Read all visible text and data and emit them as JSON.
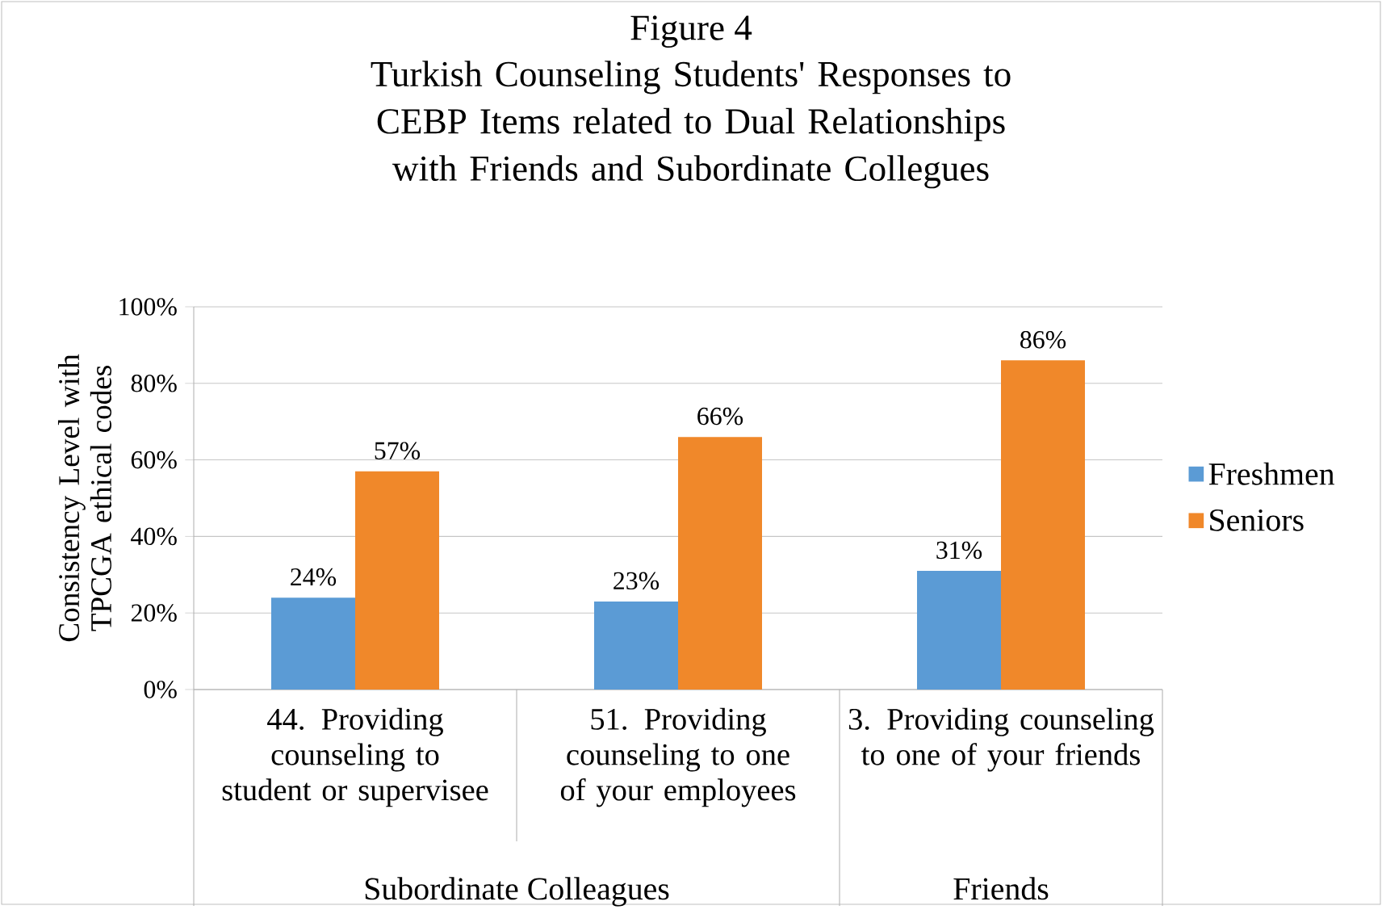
{
  "chart_data": {
    "type": "bar",
    "title": "Figure 4",
    "subtitle": "Turkish Counseling Students' Responses to CEBP Items related to Dual Relationships with Friends and Subordinate Collegues",
    "ylabel": "Consistency Level with TPCGA ethical codes",
    "categories": [
      "44. Providing counseling to student or supervisee",
      "51. Providing counseling to one of your employees",
      "3. Providing counseling to one of your friends"
    ],
    "series": [
      {
        "name": "Freshmen",
        "color": "#5b9bd5",
        "values": [
          24,
          23,
          31
        ],
        "value_labels": [
          "24%",
          "23%",
          "31%"
        ]
      },
      {
        "name": "Seniors",
        "color": "#f0882a",
        "values": [
          57,
          66,
          86
        ],
        "value_labels": [
          "57%",
          "66%",
          "86%"
        ]
      }
    ],
    "ylim": [
      0,
      100
    ],
    "yticks": [
      {
        "value": 0,
        "label": "0%"
      },
      {
        "value": 20,
        "label": "20%"
      },
      {
        "value": 40,
        "label": "40%"
      },
      {
        "value": 60,
        "label": "60%"
      },
      {
        "value": 80,
        "label": "80%"
      },
      {
        "value": 100,
        "label": "100%"
      }
    ],
    "annotations": [
      "Subordinate Colleagues",
      "Friends"
    ],
    "grid": "y",
    "legend": "right"
  }
}
